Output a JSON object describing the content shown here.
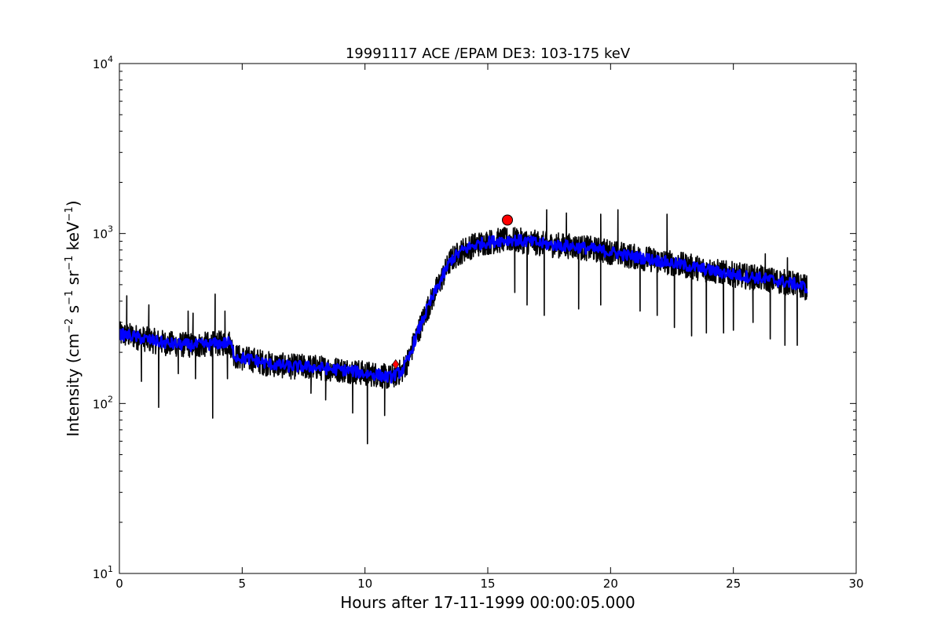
{
  "chart_data": {
    "type": "line",
    "title": "19991117 ACE /EPAM DE3: 103-175 keV",
    "xlabel": "Hours after 17-11-1999 00:00:05.000",
    "ylabel": {
      "prefix": "Intensity (cm",
      "exp_cm": "−2",
      "s": " s",
      "exp_s": "−1",
      "sr": " sr",
      "exp_sr": "−1",
      "kev": " keV",
      "exp_kev": "−1",
      "suffix": ")"
    },
    "xlim": [
      0,
      30
    ],
    "ylim": [
      10,
      10000
    ],
    "yscale": "log",
    "grid": false,
    "x_ticks": [
      "0",
      "5",
      "10",
      "15",
      "20",
      "25",
      "30"
    ],
    "y_ticks": [
      {
        "base": "10",
        "exp": "1"
      },
      {
        "base": "10",
        "exp": "2"
      },
      {
        "base": "10",
        "exp": "3"
      },
      {
        "base": "10",
        "exp": "4"
      }
    ],
    "series": [
      {
        "color": "#000000",
        "style": "raw",
        "x": [
          0.0,
          0.5,
          1.0,
          1.5,
          2.0,
          2.5,
          3.0,
          3.5,
          4.0,
          4.5,
          4.7,
          5.0,
          5.5,
          6.0,
          6.5,
          7.0,
          7.5,
          8.0,
          8.5,
          9.0,
          9.5,
          10.0,
          10.5,
          11.0,
          11.5,
          11.8,
          12.0,
          12.5,
          13.0,
          13.5,
          14.0,
          14.5,
          15.0,
          15.5,
          16.0,
          16.5,
          17.0,
          17.5,
          18.0,
          18.5,
          19.0,
          19.5,
          20.0,
          20.5,
          21.0,
          21.5,
          22.0,
          22.5,
          23.0,
          23.5,
          24.0,
          24.5,
          25.0,
          25.5,
          26.0,
          26.5,
          27.0,
          27.5,
          28.0
        ],
        "y": [
          255,
          250,
          240,
          232,
          225,
          222,
          220,
          222,
          225,
          228,
          190,
          185,
          180,
          172,
          168,
          165,
          165,
          163,
          160,
          158,
          155,
          150,
          148,
          142,
          155,
          185,
          230,
          350,
          500,
          700,
          800,
          860,
          890,
          910,
          920,
          900,
          880,
          860,
          850,
          840,
          820,
          800,
          780,
          750,
          730,
          710,
          690,
          670,
          650,
          630,
          610,
          590,
          575,
          560,
          550,
          535,
          520,
          505,
          480
        ],
        "spikes_down": [
          [
            0.9,
            135
          ],
          [
            1.6,
            95
          ],
          [
            2.4,
            150
          ],
          [
            3.1,
            140
          ],
          [
            3.8,
            82
          ],
          [
            4.4,
            140
          ],
          [
            7.8,
            115
          ],
          [
            8.4,
            105
          ],
          [
            9.5,
            88
          ],
          [
            10.1,
            58
          ],
          [
            10.8,
            85
          ],
          [
            16.1,
            450
          ],
          [
            16.6,
            380
          ],
          [
            17.3,
            330
          ],
          [
            18.7,
            360
          ],
          [
            19.6,
            380
          ],
          [
            21.2,
            350
          ],
          [
            21.9,
            330
          ],
          [
            22.6,
            280
          ],
          [
            23.3,
            250
          ],
          [
            23.9,
            260
          ],
          [
            24.6,
            260
          ],
          [
            25.0,
            270
          ],
          [
            25.8,
            300
          ],
          [
            26.5,
            240
          ],
          [
            27.1,
            220
          ],
          [
            27.6,
            220
          ]
        ],
        "spikes_up": [
          [
            0.3,
            430
          ],
          [
            1.2,
            380
          ],
          [
            2.8,
            350
          ],
          [
            3.0,
            340
          ],
          [
            3.9,
            440
          ],
          [
            4.3,
            350
          ],
          [
            17.4,
            1380
          ],
          [
            18.2,
            1320
          ],
          [
            19.6,
            1300
          ],
          [
            20.3,
            1380
          ],
          [
            22.3,
            1300
          ],
          [
            26.3,
            760
          ],
          [
            27.2,
            720
          ]
        ]
      },
      {
        "color": "#0000ff",
        "style": "smoothed",
        "x": [
          0.0,
          0.5,
          1.0,
          1.5,
          2.0,
          2.5,
          3.0,
          3.5,
          4.0,
          4.5,
          4.7,
          5.0,
          5.5,
          6.0,
          6.5,
          7.0,
          7.5,
          8.0,
          8.5,
          9.0,
          9.5,
          10.0,
          10.5,
          11.0,
          11.5,
          11.8,
          12.0,
          12.5,
          13.0,
          13.5,
          14.0,
          14.5,
          15.0,
          15.5,
          16.0,
          16.5,
          17.0,
          17.5,
          18.0,
          18.5,
          19.0,
          19.5,
          20.0,
          20.5,
          21.0,
          21.5,
          22.0,
          22.5,
          23.0,
          23.5,
          24.0,
          24.5,
          25.0,
          25.5,
          26.0,
          26.5,
          27.0,
          27.5,
          28.0
        ],
        "y": [
          255,
          250,
          240,
          232,
          225,
          222,
          220,
          222,
          225,
          228,
          190,
          185,
          180,
          172,
          168,
          165,
          165,
          163,
          160,
          158,
          155,
          150,
          148,
          142,
          155,
          185,
          230,
          350,
          500,
          700,
          800,
          860,
          890,
          910,
          920,
          900,
          880,
          860,
          850,
          840,
          820,
          800,
          780,
          750,
          730,
          710,
          690,
          670,
          650,
          630,
          610,
          590,
          575,
          560,
          550,
          535,
          520,
          505,
          480
        ]
      }
    ],
    "markers": [
      {
        "x": 15.8,
        "y": 1200,
        "shape": "circle",
        "color": "#ff0000"
      },
      {
        "x": 11.25,
        "y": 170,
        "shape": "diamond",
        "color": "#ff0000"
      }
    ]
  }
}
